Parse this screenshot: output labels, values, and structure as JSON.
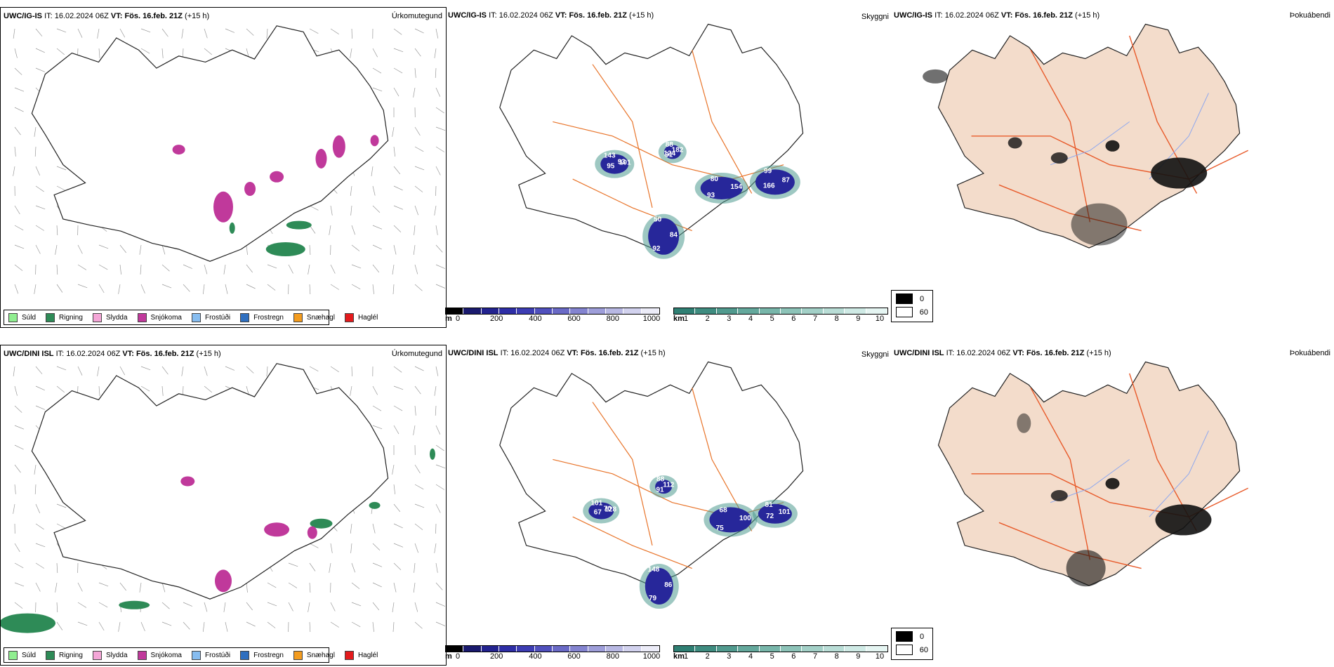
{
  "rows": [
    {
      "model": "UWC/IG-IS",
      "precip": {
        "it_label": "IT:",
        "it_value": "16.02.2024 06Z",
        "vt_label": "VT:",
        "vt_value": "Fös. 16.feb. 21Z",
        "lead": "(+15 h)",
        "title": "Úrkomutegund"
      },
      "vis": {
        "it_label": "IT:",
        "it_value": "16.02.2024 06Z",
        "vt_label": "VT:",
        "vt_value": "Fös. 16.feb. 21Z",
        "lead": "(+15 h)",
        "title": "Skyggni",
        "labels": [
          "93",
          "91",
          "80",
          "87",
          "92",
          "143",
          "182",
          "93",
          "99",
          "84",
          "95",
          "88",
          "154",
          "166",
          "50",
          "101",
          "124"
        ]
      },
      "fog": {
        "it_label": "IT:",
        "it_value": "16.02.2024 06Z",
        "vt_label": "VT:",
        "vt_value": "Fös. 16.feb. 21Z",
        "lead": "(+15 h)",
        "title": "Þokuábendi"
      }
    },
    {
      "model": "UWC/DINI ISL",
      "precip": {
        "it_label": "IT:",
        "it_value": "16.02.2024 06Z",
        "vt_label": "VT:",
        "vt_value": "Fös. 16.feb. 21Z",
        "lead": "(+15 h)",
        "title": "Úrkomutegund"
      },
      "vis": {
        "it_label": "IT:",
        "it_value": "16.02.2024 06Z",
        "vt_label": "VT:",
        "vt_value": "Fös. 16.feb. 21Z",
        "lead": "(+15 h)",
        "title": "Skyggni",
        "labels": [
          "70",
          "91",
          "68",
          "101",
          "79",
          "101",
          "112",
          "75",
          "81",
          "86",
          "67",
          "88",
          "100",
          "72",
          "148",
          "128"
        ]
      },
      "fog": {
        "it_label": "IT:",
        "it_value": "16.02.2024 06Z",
        "vt_label": "VT:",
        "vt_value": "Fös. 16.feb. 21Z",
        "lead": "(+15 h)",
        "title": "Þokuábendi"
      }
    }
  ],
  "precip_legend": [
    {
      "label": "Súld",
      "color": "#90ee90"
    },
    {
      "label": "Rigning",
      "color": "#2e8b57"
    },
    {
      "label": "Slydda",
      "color": "#f4a6d7"
    },
    {
      "label": "Snjókoma",
      "color": "#c0399b"
    },
    {
      "label": "Frostúði",
      "color": "#87bdf0"
    },
    {
      "label": "Frostregn",
      "color": "#2f6fbf"
    },
    {
      "label": "Snæhagl",
      "color": "#f39c1f"
    },
    {
      "label": "Haglél",
      "color": "#e31a1c"
    }
  ],
  "ceiling_bar": {
    "unit": "m",
    "ticks": [
      "0",
      "200",
      "400",
      "600",
      "800",
      "1000"
    ],
    "colors": [
      "#000000",
      "#1a1a6e",
      "#23238f",
      "#2e2ea6",
      "#3d3db3",
      "#5050bd",
      "#6a6ac6",
      "#8484d0",
      "#9e9ed9",
      "#b8b8e3",
      "#d2d2ee",
      "#ececf8"
    ]
  },
  "vis_bar": {
    "unit": "km",
    "ticks": [
      "1",
      "2",
      "3",
      "4",
      "5",
      "6",
      "7",
      "8",
      "9",
      "10"
    ],
    "colors": [
      "#2f7f73",
      "#3f8c80",
      "#519a8e",
      "#64a89c",
      "#78b6aa",
      "#8dc3b8",
      "#a3d0c7",
      "#b9ddd6",
      "#cfeae5",
      "#e5f5f2"
    ]
  },
  "fog_legend": [
    {
      "label": "0",
      "color": "#000000"
    },
    {
      "label": "60",
      "color": "#ffffff"
    }
  ],
  "colors": {
    "road": "#e8742a",
    "coast": "#222222",
    "land_fog": "#f3dccb",
    "river": "#8fa8ee",
    "rain": "#2e8b57",
    "snow": "#c0399b",
    "ceiling": "#27279a",
    "visib": "#4f9b8f"
  }
}
